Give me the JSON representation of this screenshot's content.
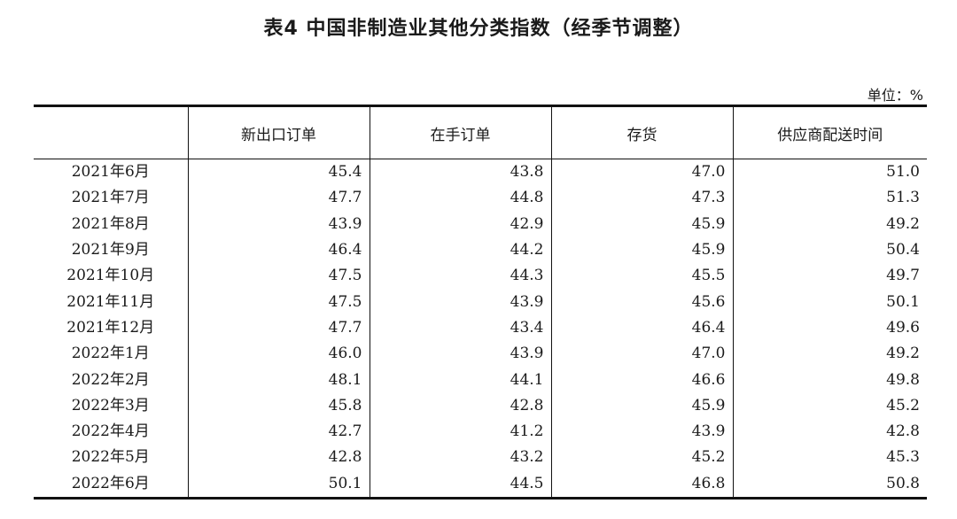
{
  "title": "表4 中国非制造业其他分类指数（经季节调整）",
  "unit": "单位：%",
  "table": {
    "headers": [
      "",
      "新出口订单",
      "在手订单",
      "存货",
      "供应商配送时间"
    ],
    "rows": [
      [
        "2021年6月",
        "45.4",
        "43.8",
        "47.0",
        "51.0"
      ],
      [
        "2021年7月",
        "47.7",
        "44.8",
        "47.3",
        "51.3"
      ],
      [
        "2021年8月",
        "43.9",
        "42.9",
        "45.9",
        "49.2"
      ],
      [
        "2021年9月",
        "46.4",
        "44.2",
        "45.9",
        "50.4"
      ],
      [
        "2021年10月",
        "47.5",
        "44.3",
        "45.5",
        "49.7"
      ],
      [
        "2021年11月",
        "47.5",
        "43.9",
        "45.6",
        "50.1"
      ],
      [
        "2021年12月",
        "47.7",
        "43.4",
        "46.4",
        "49.6"
      ],
      [
        "2022年1月",
        "46.0",
        "43.9",
        "47.0",
        "49.2"
      ],
      [
        "2022年2月",
        "48.1",
        "44.1",
        "46.6",
        "49.8"
      ],
      [
        "2022年3月",
        "45.8",
        "42.8",
        "45.9",
        "45.2"
      ],
      [
        "2022年4月",
        "42.7",
        "41.2",
        "43.9",
        "42.8"
      ],
      [
        "2022年5月",
        "42.8",
        "43.2",
        "45.2",
        "45.3"
      ],
      [
        "2022年6月",
        "50.1",
        "44.5",
        "46.8",
        "50.8"
      ]
    ]
  }
}
